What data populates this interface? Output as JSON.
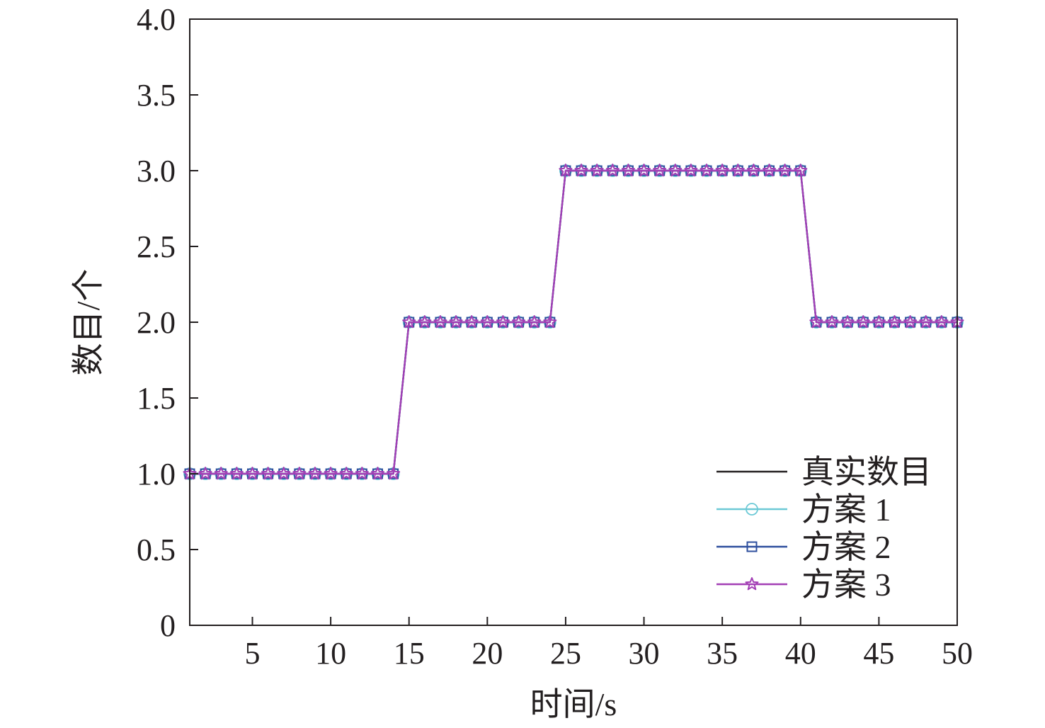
{
  "chart_data": {
    "type": "line",
    "xlabel": "时间/s",
    "ylabel": "数目/个",
    "xlim": [
      1,
      50
    ],
    "ylim": [
      0,
      4.0
    ],
    "x_ticks": [
      5,
      10,
      15,
      20,
      25,
      30,
      35,
      40,
      45,
      50
    ],
    "x_tick_labels": [
      "5",
      "10",
      "15",
      "20",
      "25",
      "30",
      "35",
      "40",
      "45",
      "50"
    ],
    "y_ticks": [
      0,
      0.5,
      1.0,
      1.5,
      2.0,
      2.5,
      3.0,
      3.5,
      4.0
    ],
    "y_tick_labels": [
      "0",
      "0.5",
      "1.0",
      "1.5",
      "2.0",
      "2.5",
      "3.0",
      "3.5",
      "4.0"
    ],
    "grid": false,
    "legend_position": "bottom-right",
    "x": [
      1,
      2,
      3,
      4,
      5,
      6,
      7,
      8,
      9,
      10,
      11,
      12,
      13,
      14,
      15,
      16,
      17,
      18,
      19,
      20,
      21,
      22,
      23,
      24,
      25,
      26,
      27,
      28,
      29,
      30,
      31,
      32,
      33,
      34,
      35,
      36,
      37,
      38,
      39,
      40,
      41,
      42,
      43,
      44,
      45,
      46,
      47,
      48,
      49,
      50
    ],
    "series": [
      {
        "name": "真实数目",
        "color": "#231f20",
        "marker": "none",
        "values": [
          1,
          1,
          1,
          1,
          1,
          1,
          1,
          1,
          1,
          1,
          1,
          1,
          1,
          1,
          2,
          2,
          2,
          2,
          2,
          2,
          2,
          2,
          2,
          2,
          3,
          3,
          3,
          3,
          3,
          3,
          3,
          3,
          3,
          3,
          3,
          3,
          3,
          3,
          3,
          3,
          2,
          2,
          2,
          2,
          2,
          2,
          2,
          2,
          2,
          2
        ]
      },
      {
        "name": "方案 1",
        "color": "#6cc9d6",
        "marker": "circle",
        "values": [
          1,
          1,
          1,
          1,
          1,
          1,
          1,
          1,
          1,
          1,
          1,
          1,
          1,
          1,
          2,
          2,
          2,
          2,
          2,
          2,
          2,
          2,
          2,
          2,
          3,
          3,
          3,
          3,
          3,
          3,
          3,
          3,
          3,
          3,
          3,
          3,
          3,
          3,
          3,
          3,
          2,
          2,
          2,
          2,
          2,
          2,
          2,
          2,
          2,
          2
        ]
      },
      {
        "name": "方案 2",
        "color": "#2e4f9e",
        "marker": "square",
        "values": [
          1,
          1,
          1,
          1,
          1,
          1,
          1,
          1,
          1,
          1,
          1,
          1,
          1,
          1,
          2,
          2,
          2,
          2,
          2,
          2,
          2,
          2,
          2,
          2,
          3,
          3,
          3,
          3,
          3,
          3,
          3,
          3,
          3,
          3,
          3,
          3,
          3,
          3,
          3,
          3,
          2,
          2,
          2,
          2,
          2,
          2,
          2,
          2,
          2,
          2
        ]
      },
      {
        "name": "方案 3",
        "color": "#a33fb5",
        "marker": "star",
        "values": [
          1,
          1,
          1,
          1,
          1,
          1,
          1,
          1,
          1,
          1,
          1,
          1,
          1,
          1,
          2,
          2,
          2,
          2,
          2,
          2,
          2,
          2,
          2,
          2,
          3,
          3,
          3,
          3,
          3,
          3,
          3,
          3,
          3,
          3,
          3,
          3,
          3,
          3,
          3,
          3,
          2,
          2,
          2,
          2,
          2,
          2,
          2,
          2,
          2,
          2
        ]
      }
    ]
  }
}
